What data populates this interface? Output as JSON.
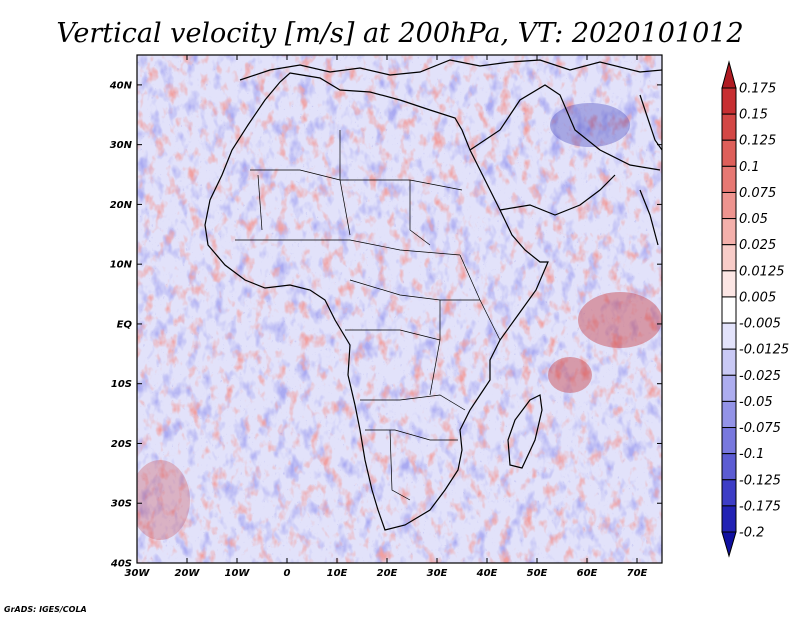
{
  "chart_data": {
    "type": "heatmap",
    "title": "Vertical velocity [m/s] at 200hPa, VT: 2020101012",
    "variable": "Vertical velocity",
    "units": "m/s",
    "level": "200hPa",
    "valid_time": "2020101012",
    "x_ticks": [
      {
        "value": -30,
        "label": "30W"
      },
      {
        "value": -20,
        "label": "20W"
      },
      {
        "value": -10,
        "label": "10W"
      },
      {
        "value": 0,
        "label": "0"
      },
      {
        "value": 10,
        "label": "10E"
      },
      {
        "value": 20,
        "label": "20E"
      },
      {
        "value": 30,
        "label": "30E"
      },
      {
        "value": 40,
        "label": "40E"
      },
      {
        "value": 50,
        "label": "50E"
      },
      {
        "value": 60,
        "label": "60E"
      },
      {
        "value": 70,
        "label": "70E"
      }
    ],
    "y_ticks": [
      {
        "value": 40,
        "label": "40N"
      },
      {
        "value": 30,
        "label": "30N"
      },
      {
        "value": 20,
        "label": "20N"
      },
      {
        "value": 10,
        "label": "10N"
      },
      {
        "value": 0,
        "label": "EQ"
      },
      {
        "value": -10,
        "label": "10S"
      },
      {
        "value": -20,
        "label": "20S"
      },
      {
        "value": -30,
        "label": "30S"
      },
      {
        "value": -40,
        "label": "40S"
      }
    ],
    "xlim": [
      -30,
      75
    ],
    "ylim": [
      -40,
      45
    ],
    "legend": {
      "placement": "right",
      "labels": [
        "0.175",
        "0.15",
        "0.125",
        "0.1",
        "0.075",
        "0.05",
        "0.025",
        "0.0125",
        "0.005",
        "-0.005",
        "-0.0125",
        "-0.025",
        "-0.05",
        "-0.075",
        "-0.1",
        "-0.125",
        "-0.175",
        "-0.2"
      ],
      "colors": [
        "#b01b22",
        "#c72f32",
        "#d34745",
        "#de5f5a",
        "#e77873",
        "#ee948f",
        "#f4b0ab",
        "#f8ccc8",
        "#fce6e4",
        "#ffffff",
        "#e3e3fb",
        "#c9c9f5",
        "#adadef",
        "#9393e7",
        "#7878de",
        "#5c5cd3",
        "#3d3dc6",
        "#2222b4",
        "#1010a0"
      ]
    }
  },
  "credit": "GrADS: IGES/COLA"
}
